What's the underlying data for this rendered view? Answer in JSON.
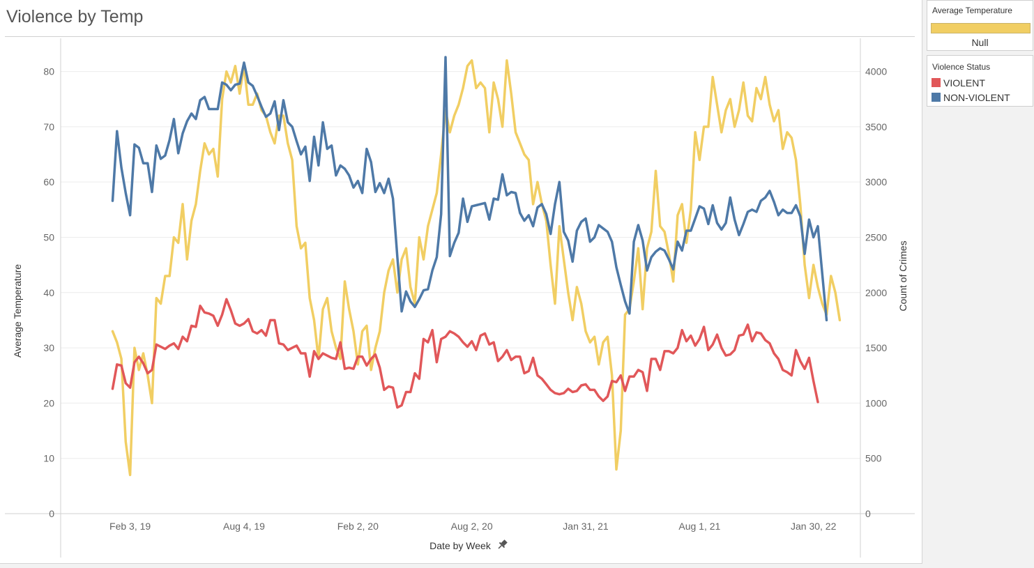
{
  "title": "Violence by Temp",
  "legend_temperature": {
    "title": "Average Temperature",
    "null_label": "Null",
    "color": "#f1ce63"
  },
  "legend_status": {
    "title": "Violence Status",
    "items": [
      {
        "label": "VIOLENT",
        "color": "#e15759"
      },
      {
        "label": "NON-VIOLENT",
        "color": "#4e79a7"
      }
    ]
  },
  "pin_icon": "pin-icon",
  "chart_data": {
    "type": "line",
    "title": "Violence by Temp",
    "xlabel": "Date by Week",
    "ylabel_left": "Average Temperature",
    "ylabel_right": "Count of Crimes",
    "x_start": "2019-01-06",
    "x_step_days": 7,
    "x_ticks": [
      {
        "label": "Feb 3, 19",
        "date": "2019-02-03"
      },
      {
        "label": "Aug 4, 19",
        "date": "2019-08-04"
      },
      {
        "label": "Feb 2, 20",
        "date": "2020-02-02"
      },
      {
        "label": "Aug 2, 20",
        "date": "2020-08-02"
      },
      {
        "label": "Jan 31, 21",
        "date": "2021-01-31"
      },
      {
        "label": "Aug 1, 21",
        "date": "2021-08-01"
      },
      {
        "label": "Jan 30, 22",
        "date": "2022-01-30"
      }
    ],
    "x_range": [
      "2018-10-15",
      "2022-04-15"
    ],
    "y_left": {
      "ticks": [
        0,
        10,
        20,
        30,
        40,
        50,
        60,
        70,
        80
      ],
      "range": [
        0,
        86
      ]
    },
    "y_right": {
      "ticks": [
        0,
        500,
        1000,
        1500,
        2000,
        2500,
        3000,
        3500,
        4000
      ],
      "range": [
        0,
        4300
      ]
    },
    "gridlines": true,
    "series": [
      {
        "name": "Average Temperature",
        "axis": "left",
        "color": "#f1ce63",
        "values": [
          33,
          31,
          28,
          13,
          7,
          30,
          26,
          29,
          25,
          20,
          39,
          38,
          43,
          43,
          50,
          49,
          56,
          46,
          53,
          56,
          62,
          67,
          65,
          66,
          61,
          75,
          80,
          78,
          81,
          76,
          81,
          74,
          74,
          76,
          73,
          72,
          69,
          67,
          72,
          72,
          67,
          64,
          52,
          48,
          49,
          39,
          35,
          28,
          37,
          39,
          33,
          30,
          28,
          42,
          37,
          33,
          27,
          33,
          34,
          26,
          30,
          33,
          40,
          44,
          46,
          40,
          46,
          48,
          41,
          38,
          50,
          46,
          52,
          55,
          58,
          65,
          73,
          69,
          72,
          74,
          77,
          81,
          82,
          77,
          78,
          77,
          69,
          78,
          75,
          70,
          82,
          76,
          69,
          67,
          65,
          64,
          56,
          60,
          56,
          53,
          45,
          38,
          52,
          46,
          40,
          35,
          41,
          38,
          33,
          31,
          32,
          27,
          31,
          32,
          25,
          8,
          15,
          36,
          37,
          42,
          48,
          37,
          48,
          51,
          62,
          52,
          51,
          47,
          42,
          54,
          56,
          49,
          55,
          69,
          64,
          70,
          70,
          79,
          74,
          69,
          73,
          75,
          70,
          73,
          78,
          72,
          71,
          77,
          75,
          79,
          74,
          71,
          73,
          66,
          69,
          68,
          64,
          56,
          45,
          39,
          45,
          41,
          38,
          36,
          43,
          40,
          35
        ]
      },
      {
        "name": "VIOLENT",
        "axis": "right",
        "color": "#e15759",
        "values": [
          1130,
          1350,
          1340,
          1180,
          1140,
          1370,
          1420,
          1360,
          1270,
          1300,
          1530,
          1510,
          1490,
          1520,
          1540,
          1490,
          1600,
          1560,
          1700,
          1690,
          1880,
          1820,
          1810,
          1790,
          1700,
          1800,
          1940,
          1840,
          1720,
          1700,
          1720,
          1760,
          1650,
          1630,
          1660,
          1610,
          1750,
          1750,
          1540,
          1530,
          1480,
          1500,
          1520,
          1450,
          1450,
          1240,
          1470,
          1400,
          1450,
          1430,
          1410,
          1400,
          1550,
          1310,
          1320,
          1310,
          1420,
          1420,
          1340,
          1400,
          1440,
          1320,
          1120,
          1150,
          1140,
          960,
          980,
          1100,
          1100,
          1270,
          1220,
          1580,
          1550,
          1660,
          1370,
          1580,
          1600,
          1650,
          1630,
          1600,
          1550,
          1510,
          1560,
          1480,
          1610,
          1630,
          1530,
          1550,
          1380,
          1420,
          1480,
          1390,
          1420,
          1420,
          1270,
          1290,
          1410,
          1250,
          1220,
          1170,
          1120,
          1090,
          1080,
          1090,
          1130,
          1100,
          1110,
          1160,
          1170,
          1120,
          1120,
          1060,
          1020,
          1060,
          1200,
          1190,
          1250,
          1110,
          1240,
          1240,
          1300,
          1280,
          1110,
          1400,
          1400,
          1300,
          1470,
          1470,
          1450,
          1500,
          1660,
          1560,
          1610,
          1520,
          1580,
          1690,
          1480,
          1530,
          1620,
          1500,
          1430,
          1440,
          1480,
          1610,
          1620,
          1710,
          1560,
          1640,
          1630,
          1570,
          1540,
          1450,
          1400,
          1300,
          1280,
          1250,
          1480,
          1380,
          1310,
          1410,
          1200,
          1010
        ]
      },
      {
        "name": "NON-VIOLENT",
        "axis": "right",
        "color": "#4e79a7",
        "values": [
          2830,
          3460,
          3130,
          2900,
          2700,
          3340,
          3310,
          3170,
          3170,
          2910,
          3330,
          3210,
          3240,
          3380,
          3570,
          3260,
          3440,
          3550,
          3620,
          3570,
          3740,
          3770,
          3660,
          3660,
          3660,
          3900,
          3880,
          3830,
          3880,
          3890,
          4080,
          3900,
          3870,
          3780,
          3680,
          3590,
          3620,
          3730,
          3470,
          3740,
          3540,
          3500,
          3370,
          3250,
          3320,
          3010,
          3410,
          3150,
          3540,
          3300,
          3330,
          3060,
          3150,
          3120,
          3060,
          2950,
          3010,
          2900,
          3300,
          3180,
          2910,
          2990,
          2900,
          3030,
          2850,
          2320,
          1830,
          2010,
          1920,
          1870,
          1940,
          2020,
          2030,
          2200,
          2320,
          2710,
          4130,
          2330,
          2450,
          2540,
          2850,
          2640,
          2780,
          2790,
          2800,
          2810,
          2660,
          2850,
          2840,
          3070,
          2880,
          2910,
          2900,
          2720,
          2650,
          2700,
          2600,
          2770,
          2800,
          2710,
          2530,
          2800,
          3000,
          2550,
          2470,
          2280,
          2560,
          2640,
          2670,
          2460,
          2500,
          2610,
          2580,
          2550,
          2460,
          2230,
          2070,
          1920,
          1810,
          2460,
          2610,
          2470,
          2200,
          2320,
          2370,
          2400,
          2380,
          2300,
          2210,
          2460,
          2380,
          2560,
          2560,
          2670,
          2780,
          2760,
          2620,
          2790,
          2630,
          2570,
          2630,
          2860,
          2660,
          2520,
          2620,
          2730,
          2750,
          2730,
          2830,
          2860,
          2920,
          2820,
          2700,
          2750,
          2720,
          2720,
          2790,
          2690,
          2350,
          2660,
          2500,
          2600,
          2170,
          1750
        ]
      }
    ]
  }
}
